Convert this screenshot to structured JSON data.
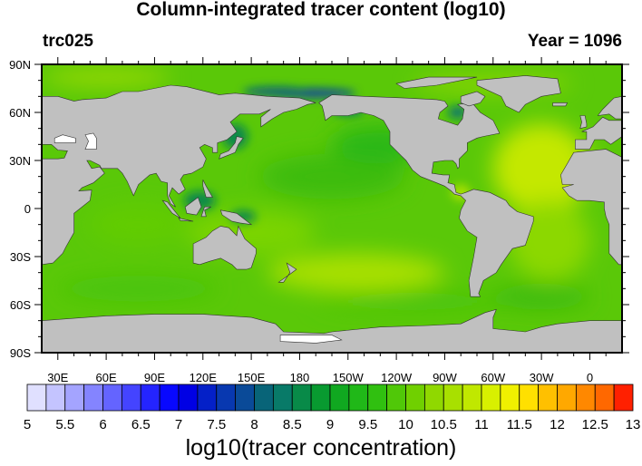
{
  "title": "Column-integrated tracer content (log10)",
  "left_string": "trc025",
  "right_string": "Year = 1096",
  "map": {
    "projection": "cylindrical equidistant",
    "center_longitude": 200,
    "land_color": "#c0c0c0",
    "lat_labels": [
      "90N",
      "60N",
      "30N",
      "0",
      "30S",
      "60S",
      "90S"
    ],
    "lon_labels": [
      "30E",
      "60E",
      "90E",
      "120E",
      "150E",
      "180",
      "150W",
      "120W",
      "90W",
      "60W",
      "30W",
      "0"
    ]
  },
  "colorbar": {
    "title": "log10(tracer concentration)",
    "labels": [
      "5",
      "5.5",
      "6",
      "6.5",
      "7",
      "7.5",
      "8",
      "8.5",
      "9",
      "9.5",
      "10",
      "10.5",
      "11",
      "11.5",
      "12",
      "12.5",
      "13"
    ],
    "colors": [
      "#e0e0ff",
      "#c4c4ff",
      "#a4a4ff",
      "#8484ff",
      "#6464ff",
      "#4444ff",
      "#2424ff",
      "#0808ff",
      "#0000e4",
      "#0420c8",
      "#0838b0",
      "#0a4a98",
      "#086478",
      "#087a68",
      "#088a48",
      "#089a30",
      "#10a820",
      "#20b818",
      "#30c010",
      "#50c808",
      "#70d000",
      "#90d800",
      "#a8e000",
      "#c0e800",
      "#d8f000",
      "#f0f000",
      "#ffe000",
      "#ffc000",
      "#ffa800",
      "#ff8800",
      "#ff6800",
      "#ff2000"
    ]
  }
}
